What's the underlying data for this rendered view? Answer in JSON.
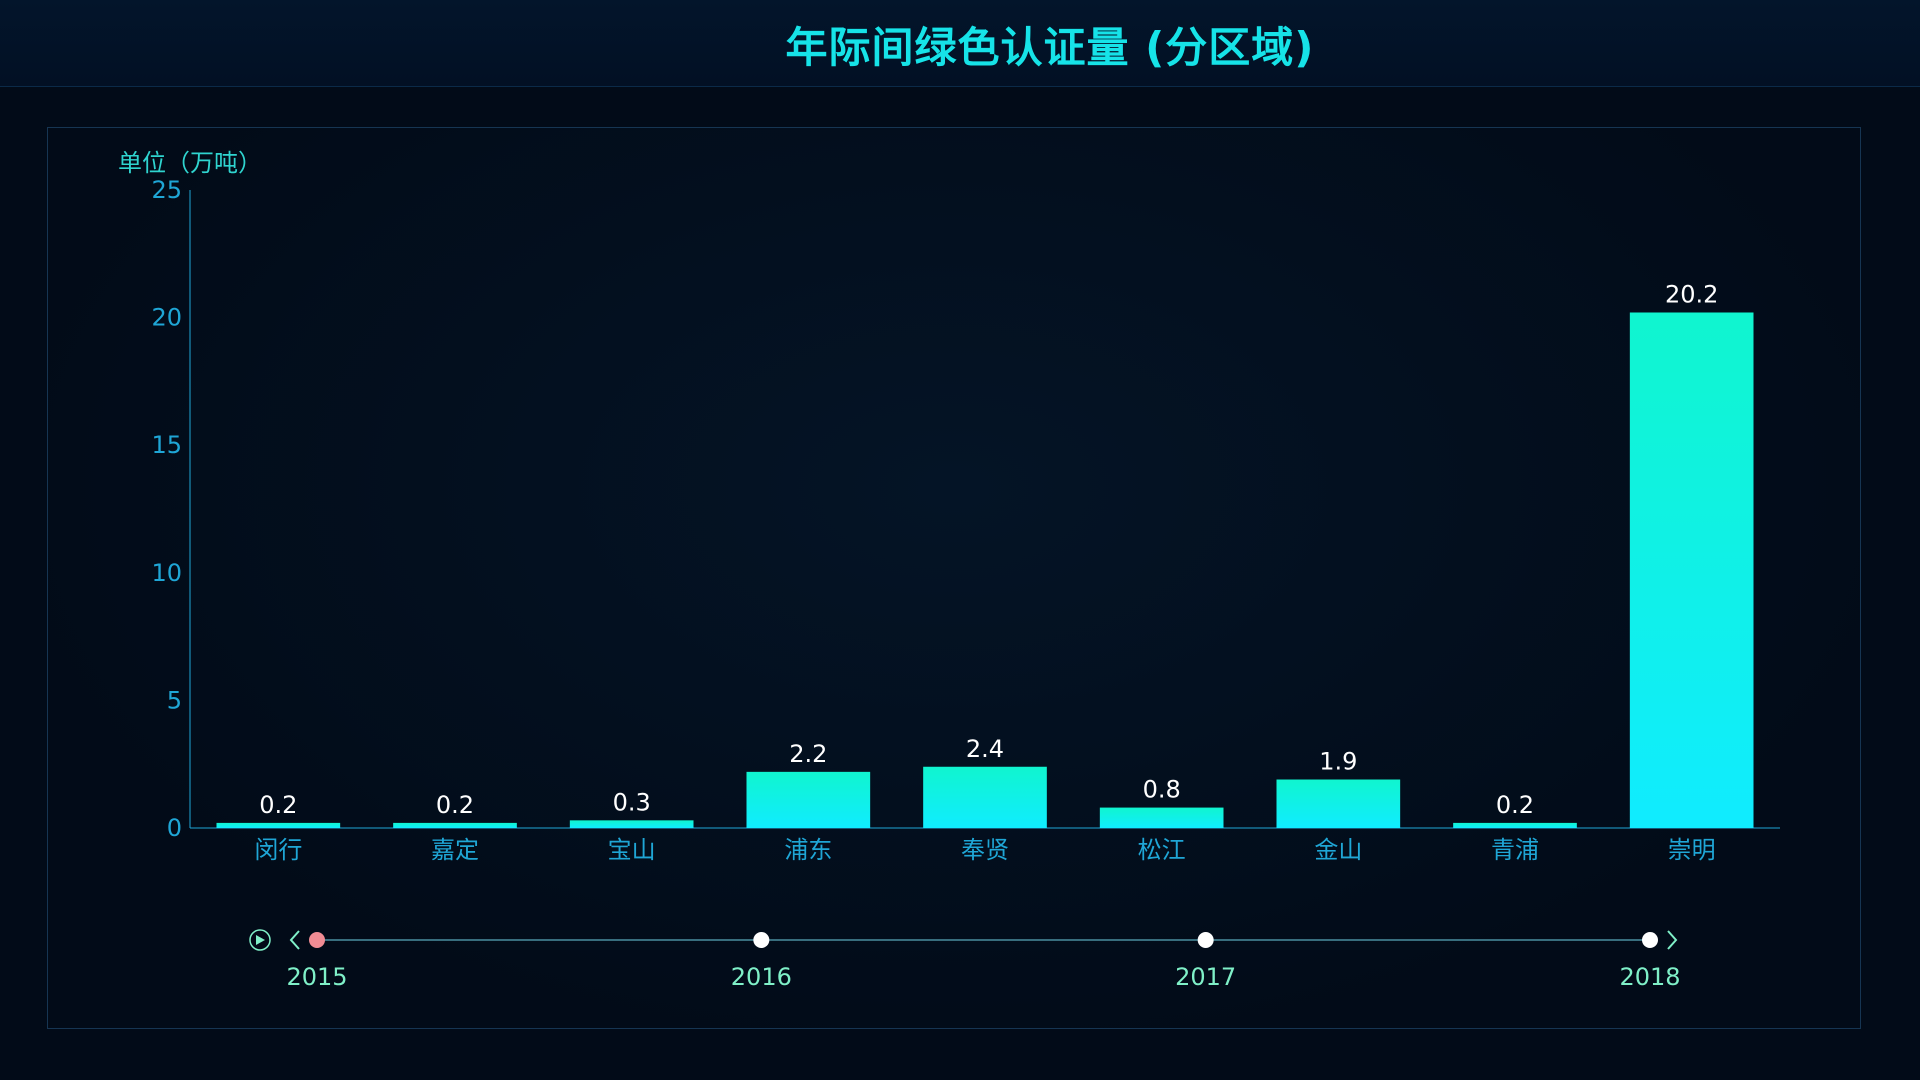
{
  "header": {
    "title": "年际间绿色认证量 (分区域)"
  },
  "chart_data": {
    "type": "bar",
    "title": "年际间绿色认证量 (分区域)",
    "ylabel": "单位（万吨）",
    "xlabel": "",
    "ylim": [
      0,
      25
    ],
    "yticks": [
      0,
      5,
      10,
      15,
      20,
      25
    ],
    "categories": [
      "闵行",
      "嘉定",
      "宝山",
      "浦东",
      "奉贤",
      "松江",
      "金山",
      "青浦",
      "崇明"
    ],
    "values": [
      0.2,
      0.2,
      0.3,
      2.2,
      2.4,
      0.8,
      1.9,
      0.2,
      20.2
    ],
    "value_labels": [
      "0.2",
      "0.2",
      "0.3",
      "2.2",
      "2.4",
      "0.8",
      "1.9",
      "0.2",
      "20.2"
    ],
    "grid": false,
    "colors": {
      "bar_top": "#10f5cf",
      "bar_bottom": "#10ecff",
      "axis": "#1fa6d6",
      "value_label": "#ffffff",
      "timeline_text": "#7ff0c8"
    }
  },
  "timeline": {
    "years": [
      "2015",
      "2016",
      "2017",
      "2018"
    ],
    "current_index": 0,
    "play_label": "play",
    "active_color": "#f08c94"
  }
}
